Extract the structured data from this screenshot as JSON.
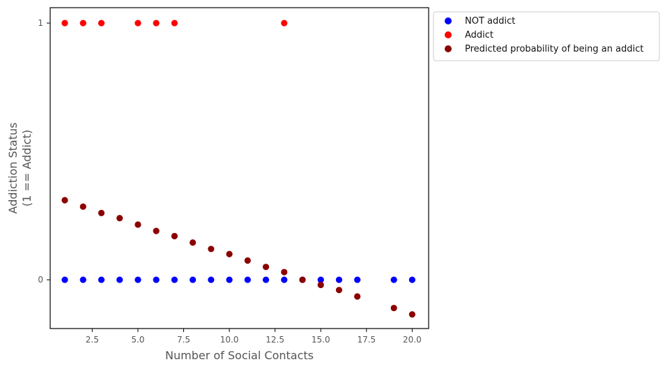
{
  "chart_data": {
    "type": "scatter",
    "xlabel": "Number of Social Contacts",
    "ylabel_lines": [
      "Addiction Status",
      "(1 == Addict)"
    ],
    "xlim": [
      0.2,
      20.9
    ],
    "ylim": [
      -0.19,
      1.06
    ],
    "x_ticks": [
      2.5,
      5.0,
      7.5,
      10.0,
      12.5,
      15.0,
      17.5,
      20.0
    ],
    "x_tick_labels": [
      "2.5",
      "5.0",
      "7.5",
      "10.0",
      "12.5",
      "15.0",
      "17.5",
      "20.0"
    ],
    "y_ticks": [
      0,
      1
    ],
    "y_tick_labels": [
      "0",
      "1"
    ],
    "grid": false,
    "legend_position": "outside-top-right",
    "series": [
      {
        "name": "NOT addict",
        "color": "#0000ff",
        "x": [
          1,
          2,
          3,
          4,
          5,
          6,
          7,
          8,
          9,
          10,
          11,
          12,
          13,
          14,
          15,
          16,
          17,
          19,
          20
        ],
        "y": [
          0,
          0,
          0,
          0,
          0,
          0,
          0,
          0,
          0,
          0,
          0,
          0,
          0,
          0,
          0,
          0,
          0,
          0,
          0
        ]
      },
      {
        "name": "Addict",
        "color": "#ff0000",
        "x": [
          1,
          2,
          3,
          5,
          6,
          7,
          13
        ],
        "y": [
          1,
          1,
          1,
          1,
          1,
          1,
          1
        ]
      },
      {
        "name": "Predicted probability of being an addict",
        "color": "#8b0000",
        "x": [
          1,
          2,
          3,
          4,
          5,
          6,
          7,
          8,
          9,
          10,
          11,
          12,
          13,
          14,
          15,
          16,
          17,
          19,
          20
        ],
        "y": [
          0.31,
          0.285,
          0.26,
          0.24,
          0.215,
          0.19,
          0.17,
          0.145,
          0.12,
          0.1,
          0.075,
          0.05,
          0.03,
          0.0,
          -0.02,
          -0.04,
          -0.065,
          -0.11,
          -0.135
        ]
      }
    ]
  }
}
